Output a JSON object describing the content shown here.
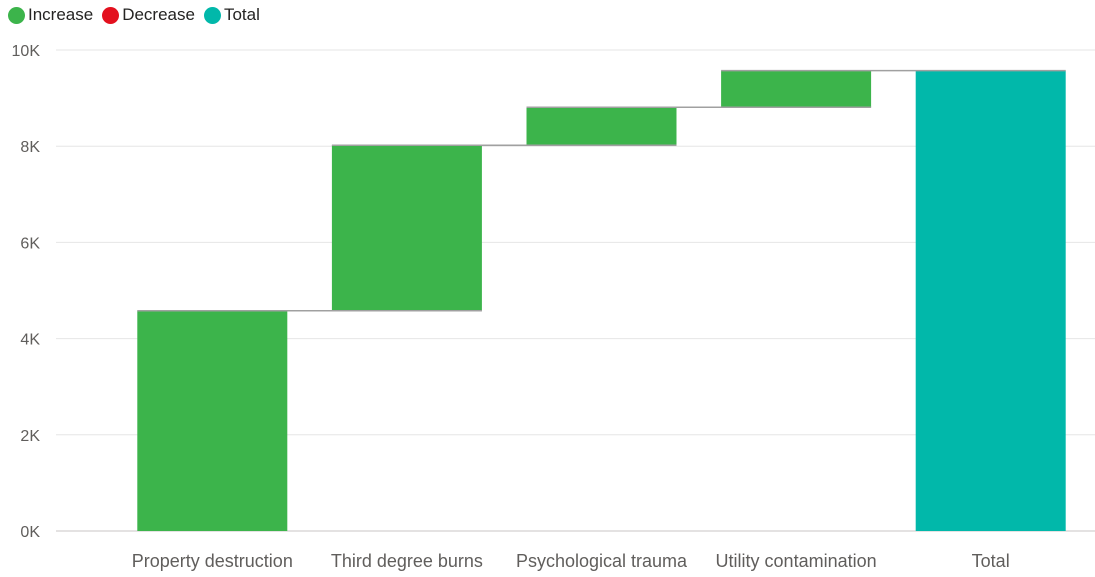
{
  "legend": {
    "items": [
      {
        "key": "increase",
        "label": "Increase",
        "color": "#3cb44b"
      },
      {
        "key": "decrease",
        "label": "Decrease",
        "color": "#e3101e"
      },
      {
        "key": "total",
        "label": "Total",
        "color": "#01b8aa"
      }
    ]
  },
  "chart_data": {
    "type": "bar",
    "subtype": "waterfall",
    "title": "",
    "xlabel": "",
    "ylabel": "",
    "ylim": [
      0,
      10000
    ],
    "y_ticks": [
      0,
      2000,
      4000,
      6000,
      8000,
      10000
    ],
    "y_tick_labels": [
      "0K",
      "2K",
      "4K",
      "6K",
      "8K",
      "10K"
    ],
    "grid": true,
    "legend_position": "top-left",
    "categories": [
      "Property destruction",
      "Third degree burns",
      "Psychological trauma",
      "Utility contamination",
      "Total"
    ],
    "values": [
      4580,
      3440,
      790,
      760,
      9570
    ],
    "kinds": [
      "increase",
      "increase",
      "increase",
      "increase",
      "total"
    ],
    "colors": {
      "increase": "#3cb44b",
      "decrease": "#e3101e",
      "total": "#01b8aa",
      "connector": "#a0a0a0",
      "grid": "#e6e6e6",
      "baseline": "#c8c6c4"
    }
  }
}
